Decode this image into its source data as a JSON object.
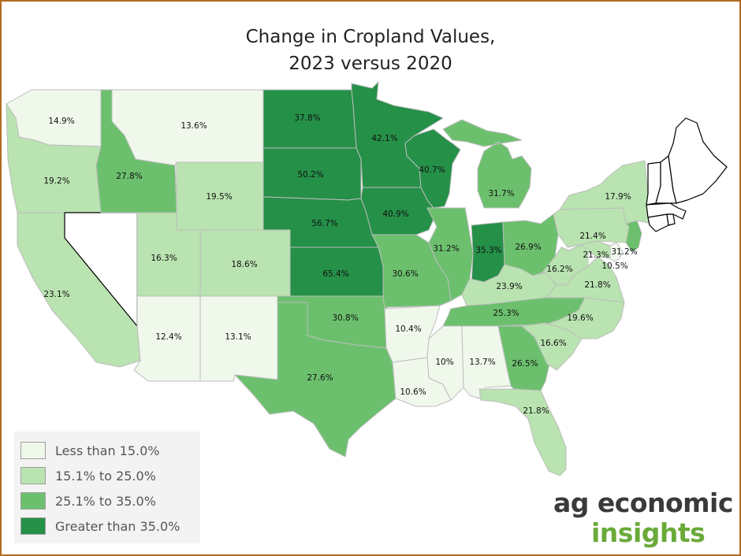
{
  "title_line1": "Change in Cropland Values,",
  "title_line2": "2023 versus 2020",
  "colors": {
    "less_than_15": "#f0f8ec",
    "15_to_25": "#b9e3b0",
    "25_to_35": "#6cc06d",
    "greater_than_35": "#259048",
    "no_data": "#ffffff",
    "border": "#b36a1e",
    "logo_dark": "#3a3a3a",
    "logo_green": "#6aaa3a"
  },
  "legend": [
    {
      "label": "Less than 15.0%",
      "bin": "less_than_15"
    },
    {
      "label": "15.1% to 25.0%",
      "bin": "15_to_25"
    },
    {
      "label": "25.1% to 35.0%",
      "bin": "25_to_35"
    },
    {
      "label": "Greater than 35.0%",
      "bin": "greater_than_35"
    }
  ],
  "states": [
    {
      "state": "WA",
      "label": "14.9%",
      "bin": "less_than_15"
    },
    {
      "state": "OR",
      "label": "19.2%",
      "bin": "15_to_25"
    },
    {
      "state": "CA",
      "label": "23.1%",
      "bin": "15_to_25"
    },
    {
      "state": "NV",
      "label": "",
      "bin": "no_data"
    },
    {
      "state": "ID",
      "label": "27.8%",
      "bin": "25_to_35"
    },
    {
      "state": "MT",
      "label": "13.6%",
      "bin": "less_than_15"
    },
    {
      "state": "WY",
      "label": "19.5%",
      "bin": "15_to_25"
    },
    {
      "state": "UT",
      "label": "16.3%",
      "bin": "15_to_25"
    },
    {
      "state": "CO",
      "label": "18.6%",
      "bin": "15_to_25"
    },
    {
      "state": "AZ",
      "label": "12.4%",
      "bin": "less_than_15"
    },
    {
      "state": "NM",
      "label": "13.1%",
      "bin": "less_than_15"
    },
    {
      "state": "ND",
      "label": "37.8%",
      "bin": "greater_than_35"
    },
    {
      "state": "SD",
      "label": "50.2%",
      "bin": "greater_than_35"
    },
    {
      "state": "NE",
      "label": "56.7%",
      "bin": "greater_than_35"
    },
    {
      "state": "KS",
      "label": "65.4%",
      "bin": "greater_than_35"
    },
    {
      "state": "OK",
      "label": "30.8%",
      "bin": "25_to_35"
    },
    {
      "state": "TX",
      "label": "27.6%",
      "bin": "25_to_35"
    },
    {
      "state": "MN",
      "label": "42.1%",
      "bin": "greater_than_35"
    },
    {
      "state": "IA",
      "label": "40.9%",
      "bin": "greater_than_35"
    },
    {
      "state": "MO",
      "label": "30.6%",
      "bin": "25_to_35"
    },
    {
      "state": "AR",
      "label": "10.4%",
      "bin": "less_than_15"
    },
    {
      "state": "LA",
      "label": "10.6%",
      "bin": "less_than_15"
    },
    {
      "state": "WI",
      "label": "40.7%",
      "bin": "greater_than_35"
    },
    {
      "state": "IL",
      "label": "31.2%",
      "bin": "25_to_35"
    },
    {
      "state": "MI",
      "label": "31.7%",
      "bin": "25_to_35"
    },
    {
      "state": "IN",
      "label": "35.3%",
      "bin": "greater_than_35"
    },
    {
      "state": "OH",
      "label": "26.9%",
      "bin": "25_to_35"
    },
    {
      "state": "KY",
      "label": "23.9%",
      "bin": "15_to_25"
    },
    {
      "state": "TN",
      "label": "25.3%",
      "bin": "25_to_35"
    },
    {
      "state": "MS",
      "label": "10%",
      "bin": "less_than_15"
    },
    {
      "state": "AL",
      "label": "13.7%",
      "bin": "less_than_15"
    },
    {
      "state": "GA",
      "label": "26.5%",
      "bin": "25_to_35"
    },
    {
      "state": "FL",
      "label": "21.8%",
      "bin": "15_to_25"
    },
    {
      "state": "SC",
      "label": "16.6%",
      "bin": "15_to_25"
    },
    {
      "state": "NC",
      "label": "19.6%",
      "bin": "15_to_25"
    },
    {
      "state": "VA",
      "label": "21.8%",
      "bin": "15_to_25"
    },
    {
      "state": "WV",
      "label": "16.2%",
      "bin": "15_to_25"
    },
    {
      "state": "MD",
      "label": "21.3%",
      "bin": "15_to_25"
    },
    {
      "state": "DE",
      "label": "10.5%",
      "bin": "less_than_15"
    },
    {
      "state": "PA",
      "label": "21.4%",
      "bin": "15_to_25"
    },
    {
      "state": "NJ",
      "label": "31.2%",
      "bin": "25_to_35"
    },
    {
      "state": "NY",
      "label": "17.9%",
      "bin": "15_to_25"
    },
    {
      "state": "CT",
      "label": "",
      "bin": "no_data"
    },
    {
      "state": "RI",
      "label": "",
      "bin": "no_data"
    },
    {
      "state": "MA",
      "label": "",
      "bin": "no_data"
    },
    {
      "state": "VT",
      "label": "",
      "bin": "no_data"
    },
    {
      "state": "NH",
      "label": "",
      "bin": "no_data"
    },
    {
      "state": "ME",
      "label": "",
      "bin": "no_data"
    }
  ],
  "logo": {
    "line1": "ag economic",
    "line2": "insights"
  }
}
